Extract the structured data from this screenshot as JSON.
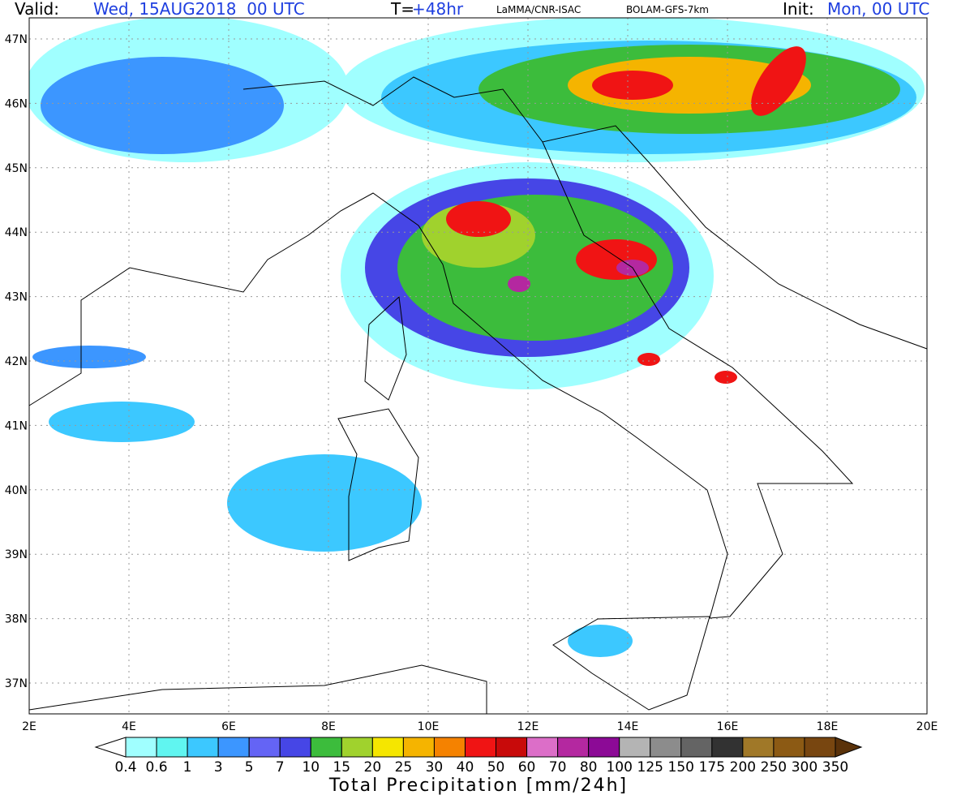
{
  "header": {
    "valid_label": "Valid:",
    "valid_value": "Wed, 15AUG2018  00 UTC",
    "t_label": "T=",
    "t_value": "+48hr",
    "source": "LaMMA/CNR-ISAC",
    "model": "BOLAM-GFS-7km",
    "init_label": "Init:",
    "init_value": "Mon, 00 UTC"
  },
  "map": {
    "lon_ticks": [
      {
        "value": 2,
        "label": "2E"
      },
      {
        "value": 4,
        "label": "4E"
      },
      {
        "value": 6,
        "label": "6E"
      },
      {
        "value": 8,
        "label": "8E"
      },
      {
        "value": 10,
        "label": "10E"
      },
      {
        "value": 12,
        "label": "12E"
      },
      {
        "value": 14,
        "label": "14E"
      },
      {
        "value": 16,
        "label": "16E"
      },
      {
        "value": 18,
        "label": "18E"
      },
      {
        "value": 20,
        "label": "20E"
      }
    ],
    "lat_ticks": [
      {
        "value": 47,
        "label": "47N"
      },
      {
        "value": 46,
        "label": "46N"
      },
      {
        "value": 45,
        "label": "45N"
      },
      {
        "value": 44,
        "label": "44N"
      },
      {
        "value": 43,
        "label": "43N"
      },
      {
        "value": 42,
        "label": "42N"
      },
      {
        "value": 41,
        "label": "41N"
      },
      {
        "value": 40,
        "label": "40N"
      },
      {
        "value": 39,
        "label": "39N"
      },
      {
        "value": 38,
        "label": "38N"
      },
      {
        "value": 37,
        "label": "37N"
      }
    ]
  },
  "colorbar": {
    "title": "Total Precipitation [mm/24h]",
    "levels": [
      0.4,
      0.6,
      1,
      3,
      5,
      7,
      10,
      15,
      20,
      25,
      30,
      40,
      50,
      60,
      70,
      80,
      100,
      125,
      150,
      175,
      200,
      250,
      300,
      350
    ],
    "colors": [
      "#a0ffff",
      "#60f5f0",
      "#3cc8ff",
      "#3c96ff",
      "#6464f5",
      "#4646e6",
      "#3cbc3c",
      "#a0d22d",
      "#f5e600",
      "#f5b400",
      "#f58200",
      "#f01414",
      "#c80a0a",
      "#dc6ec8",
      "#b428a0",
      "#8c0a96",
      "#b4b4b4",
      "#8c8c8c",
      "#646464",
      "#323232",
      "#a07828",
      "#8c5a14",
      "#784610"
    ],
    "under_color": "#ffffff",
    "over_color": "#5a320a"
  }
}
